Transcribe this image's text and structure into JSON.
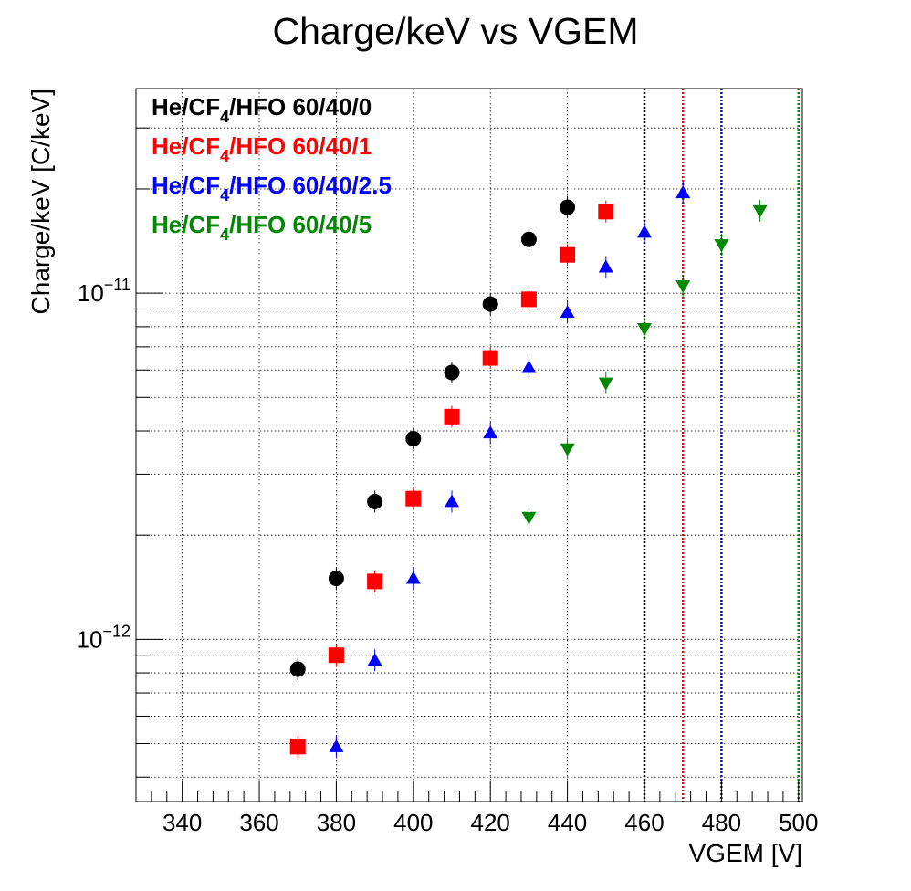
{
  "chart_data": {
    "type": "scatter",
    "title": "Charge/keV vs VGEM",
    "xlabel": "VGEM [V]",
    "ylabel": "Charge/keV [C/keV]",
    "xlim": [
      328,
      501
    ],
    "ylim": [
      3.4e-13,
      3.9e-11
    ],
    "yscale": "log",
    "grid": true,
    "legend_position": "top-left",
    "x_ticks": [
      340,
      360,
      380,
      400,
      420,
      440,
      460,
      480,
      500
    ],
    "x_tick_labels": [
      "340",
      "360",
      "380",
      "400",
      "420",
      "440",
      "460",
      "480",
      "500"
    ],
    "y_major_ticks": [
      {
        "value": 1e-12,
        "base": "10",
        "exp": "−12"
      },
      {
        "value": 1e-11,
        "base": "10",
        "exp": "−11"
      }
    ],
    "series": [
      {
        "name_parts": [
          "He/CF",
          "4",
          "/HFO 60/40/0"
        ],
        "color": "#000000",
        "marker": "circle",
        "x": [
          370,
          380,
          390,
          400,
          410,
          420,
          430,
          440
        ],
        "y": [
          8.2e-13,
          1.5e-12,
          2.5e-12,
          3.8e-12,
          5.9e-12,
          9.3e-12,
          1.43e-11,
          1.77e-11
        ]
      },
      {
        "name_parts": [
          "He/CF",
          "4",
          "/HFO 60/40/1"
        ],
        "color": "#ff0000",
        "marker": "square",
        "x": [
          370,
          380,
          390,
          400,
          410,
          420,
          430,
          440,
          450
        ],
        "y": [
          4.9e-13,
          9e-13,
          1.47e-12,
          2.55e-12,
          4.4e-12,
          6.5e-12,
          9.6e-12,
          1.29e-11,
          1.72e-11
        ]
      },
      {
        "name_parts": [
          "He/CF",
          "4",
          "/HFO 60/40/2.5"
        ],
        "color": "#0000ff",
        "marker": "triangle-up",
        "x": [
          380,
          390,
          400,
          410,
          420,
          430,
          440,
          450,
          460,
          470
        ],
        "y": [
          4.9e-13,
          8.7e-13,
          1.5e-12,
          2.5e-12,
          3.95e-12,
          6.1e-12,
          8.8e-12,
          1.19e-11,
          1.5e-11,
          1.95e-11
        ]
      },
      {
        "name_parts": [
          "He/CF",
          "4",
          "/HFO 60/40/5"
        ],
        "color": "#008800",
        "marker": "triangle-down",
        "x": [
          430,
          440,
          450,
          460,
          470,
          480,
          490
        ],
        "y": [
          2.25e-12,
          3.55e-12,
          5.5e-12,
          7.9e-12,
          1.05e-11,
          1.38e-11,
          1.73e-11
        ]
      }
    ],
    "vertical_lines": [
      {
        "x": 460,
        "color": "#000000",
        "style": "dotted"
      },
      {
        "x": 470,
        "color": "#ff0000",
        "style": "dotted"
      },
      {
        "x": 480,
        "color": "#0000ff",
        "style": "dotted"
      },
      {
        "x": 500,
        "color": "#008800",
        "style": "dotted"
      }
    ]
  }
}
